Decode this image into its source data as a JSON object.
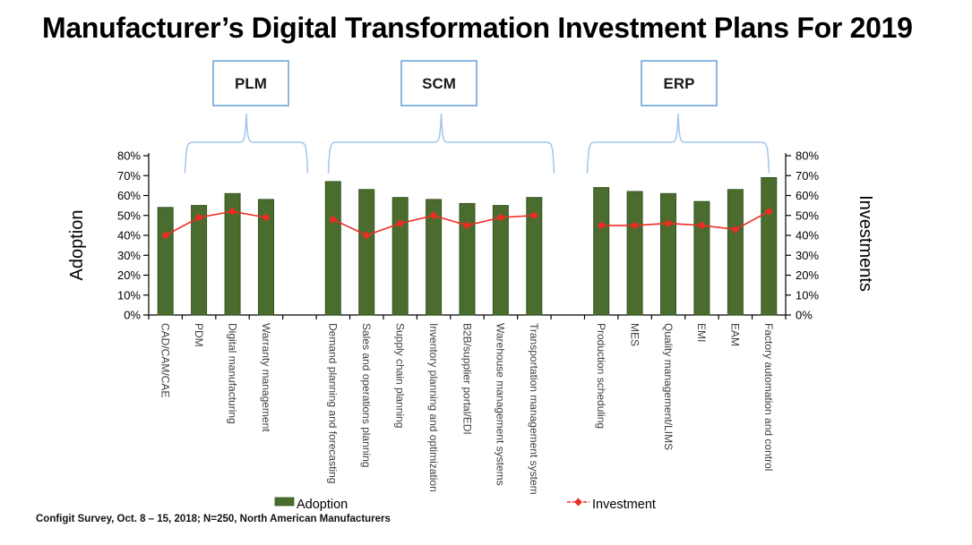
{
  "title": "Manufacturer’s Digital Transformation Investment Plans For 2019",
  "footnote": "Configit Survey, Oct. 8 – 15, 2018; N=250, North American Manufacturers",
  "legend": {
    "adoption_label": "Adoption",
    "investment_label": "Investment"
  },
  "chart_data": {
    "type": "bar",
    "series_info": [
      {
        "name": "Adoption",
        "type": "bar"
      },
      {
        "name": "Investment",
        "type": "line"
      }
    ],
    "left_axis": {
      "label": "Adoption",
      "min": 0,
      "max": 80,
      "step": 10,
      "format": "percent"
    },
    "right_axis": {
      "label": "Investments",
      "min": 0,
      "max": 80,
      "step": 10,
      "format": "percent"
    },
    "legend_position": "bottom",
    "grid": false,
    "groups": [
      {
        "name": "PLM",
        "items": [
          {
            "category": "CAD/CAM/CAE",
            "adoption": 54,
            "investment": 40
          },
          {
            "category": "PDM",
            "adoption": 55,
            "investment": 49
          },
          {
            "category": "Digital manufacturing",
            "adoption": 61,
            "investment": 52
          },
          {
            "category": "Warranty management",
            "adoption": 58,
            "investment": 49
          }
        ]
      },
      {
        "name": "SCM",
        "items": [
          {
            "category": "Demand planning and forecasting",
            "adoption": 67,
            "investment": 48
          },
          {
            "category": "Sales and operations planning",
            "adoption": 63,
            "investment": 40
          },
          {
            "category": "Supply chain planning",
            "adoption": 59,
            "investment": 46
          },
          {
            "category": "Inventory planning and optimization",
            "adoption": 58,
            "investment": 50
          },
          {
            "category": "B2B/supplier portal/EDI",
            "adoption": 56,
            "investment": 45
          },
          {
            "category": "Warehouse management systems",
            "adoption": 55,
            "investment": 49
          },
          {
            "category": "Transportation management system",
            "adoption": 59,
            "investment": 50
          }
        ]
      },
      {
        "name": "ERP",
        "items": [
          {
            "category": "Production scheduling",
            "adoption": 64,
            "investment": 45
          },
          {
            "category": "MES",
            "adoption": 62,
            "investment": 45
          },
          {
            "category": "Quality management/LIMS",
            "adoption": 61,
            "investment": 46
          },
          {
            "category": "EMI",
            "adoption": 57,
            "investment": 45
          },
          {
            "category": "EAM",
            "adoption": 63,
            "investment": 43
          },
          {
            "category": "Factory automation and control",
            "adoption": 69,
            "investment": 52
          }
        ]
      }
    ],
    "colors": {
      "bar": "#4a6c2f",
      "bar_border": "#37551f",
      "line": "#ee2c24",
      "brace": "#a3c6e8",
      "box_border": "#5b9bd5"
    }
  }
}
